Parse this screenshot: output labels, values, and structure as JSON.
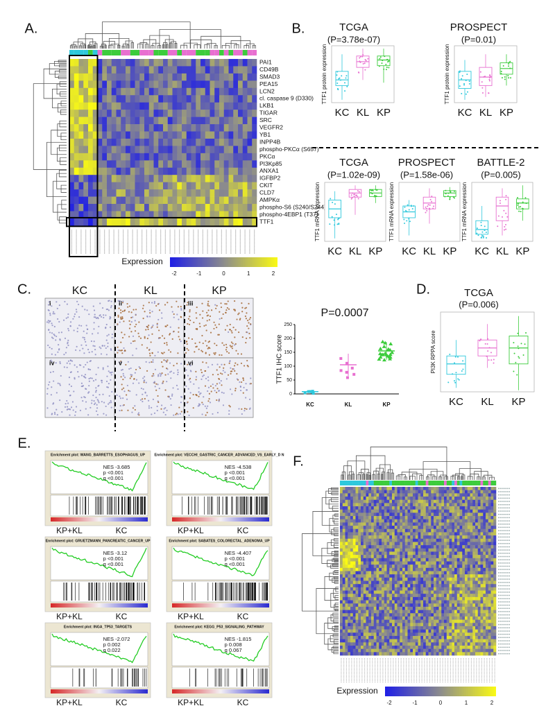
{
  "panel_a": {
    "label": "A.",
    "rows": [
      "PAI1",
      "CD49B",
      "SMAD3",
      "PEA15",
      "LCN2",
      "cl. caspase 9 (D330)",
      "LKB1",
      "TIGAR",
      "SRC",
      "VEGFR2",
      "YB1",
      "INPP4B",
      "phospho-PKCα (S657)",
      "PKCα",
      "PI3Kp85",
      "ANXA1",
      "IGFBP2",
      "CKIT",
      "CLD7",
      "AMPKα",
      "phospho-S6 (S240/S244)",
      "phospho-4EBP1 (T37)",
      "TTF1"
    ],
    "colorbar": {
      "title": "Expression",
      "ticks": [
        "-2",
        "-1",
        "0",
        "1",
        "2"
      ]
    }
  },
  "panel_b": {
    "label": "B.",
    "protein_plots": [
      {
        "title": "TCGA",
        "p": "(P=3.78e-07)"
      },
      {
        "title": "PROSPECT",
        "p": "(P=0.01)"
      }
    ],
    "protein_ylabel": "TTF1 protein expression",
    "mrna_plots": [
      {
        "title": "TCGA",
        "p": "(P=1.02e-09)"
      },
      {
        "title": "PROSPECT",
        "p": "(P=1.58e-06)"
      },
      {
        "title": "BATTLE-2",
        "p": "(P=0.005)"
      }
    ],
    "mrna_ylabel": "TTF1 mRNA expression",
    "groups": [
      "KC",
      "KL",
      "KP"
    ]
  },
  "panel_c": {
    "label": "C.",
    "columns": [
      "KC",
      "KL",
      "KP"
    ],
    "image_labels": [
      "i",
      "ii",
      "iii",
      "iv",
      "v",
      "vi"
    ],
    "p": "P=0.0007",
    "ylabel": "TTF1 IHC score",
    "yticks": [
      0,
      50,
      100,
      150,
      200,
      250
    ],
    "groups": [
      "KC",
      "KL",
      "KP"
    ]
  },
  "panel_d": {
    "label": "D.",
    "title": "TCGA",
    "p": "(P=0.006)",
    "ylabel": "PI3K RPPA score",
    "groups": [
      "KC",
      "KL",
      "KP"
    ]
  },
  "panel_e": {
    "label": "E.",
    "group_left": "KP+KL",
    "group_right": "KC",
    "plots": [
      {
        "title": "Enrichment plot: WANG_BARRETTS_ESOPHAGUS_UP",
        "nes": "NES -3.685",
        "p": "p <0.001",
        "q": "q <0.001"
      },
      {
        "title": "Enrichment plot: VECCHI_GASTRIC_CANCER_ADVANCED_VS_EARLY_D N",
        "nes": "NES -4.538",
        "p": "p <0.001",
        "q": "q <0.001"
      },
      {
        "title": "Enrichment plot: GRUETZMANN_PANCREATIC_CANCER_UP",
        "nes": "NES -3.12",
        "p": "p <0.001",
        "q": "q <0.001"
      },
      {
        "title": "Enrichment plot: SABATES_COLORECTAL_ADENOMA_UP",
        "nes": "NES -4.407",
        "p": "p <0.001",
        "q": "q <0.001"
      },
      {
        "title": "Enrichment plot: INGA_TP53_TARGETS",
        "nes": "NES -2.072",
        "p": "p 0.002",
        "q": "q 0.022"
      },
      {
        "title": "Enrichment plot: KEGG_P53_SIGNALING_PATHWAY",
        "nes": "NES -1.815",
        "p": "p 0.008",
        "q": "q 0.067"
      }
    ]
  },
  "panel_f": {
    "label": "F.",
    "colorbar": {
      "title": "Expression",
      "ticks": [
        "-2",
        "-1",
        "0",
        "1",
        "2"
      ]
    }
  }
}
